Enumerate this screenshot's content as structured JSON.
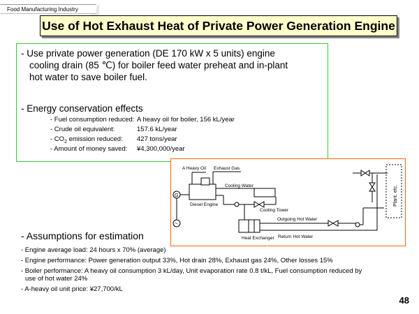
{
  "header": {
    "category": "Food Manufacturing Industry",
    "title": "Use of Hot Exhaust Heat of Private Power Generation Engine"
  },
  "main": {
    "bullet1_line1": "- Use private power generation (DE 170 kW x 5 units) engine",
    "bullet1_line2": "cooling drain (85 ℃) for boiler feed water preheat and in-plant",
    "bullet1_line3": "hot water to save boiler fuel.",
    "effects_heading": "- Energy conservation effects",
    "effects": [
      {
        "label": "- Fuel consumption reduced:",
        "value": "A heavy oil for boiler, 156 kL/year"
      },
      {
        "label": "- Crude oil equivalent:",
        "value": "157.6 kL/year"
      },
      {
        "label_pre": "- CO",
        "label_sub": "2",
        "label_post": " emission reduced:",
        "value": "427 tons/year"
      },
      {
        "label": "- Amount of money saved:",
        "value": "¥4,300,000/year"
      }
    ]
  },
  "diagram": {
    "labels": {
      "a_heavy_oil": "A Heavy Oil",
      "exhaust_gas": "Exhaust Gas",
      "cooling_water": "Cooling Water",
      "diesel_engine": "Diesel Engine",
      "cooling_tower": "Cooling Tower",
      "outgoing_hot_water": "Outgoing Hot Water",
      "heat_exchanger": "Heat Exchanger",
      "return_hot_water": "Return Hot Water",
      "plant": "Plant, etc.",
      "generator": "G",
      "ac": "~"
    }
  },
  "assumptions": {
    "heading": "- Assumptions for estimation",
    "items": [
      "- Engine average load: 24 hours x 70% (average)",
      "- Engine performance: Power generation output 33%, Hot drain 28%, Exhaust gas 24%, Other losses 15%",
      "- Boiler performance: A heavy oil consumption 3 kL/day, Unit evaporation rate 0.8 t/kL, Fuel consumption reduced by",
      "  use of hot water 24%",
      "- A-heavy oil unit price: ¥27,700/kL"
    ]
  },
  "footer": {
    "page_number": "48"
  }
}
